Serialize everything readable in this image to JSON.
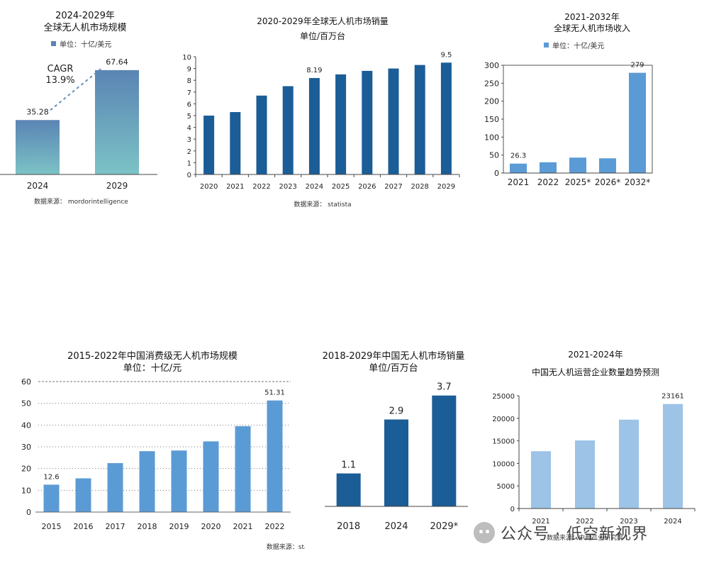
{
  "chart_data": [
    {
      "type": "bar",
      "title": "2024-2029年\n全球无人机市场规模",
      "legend": "单位：十亿/美元",
      "categories": [
        "2024",
        "2029"
      ],
      "values": [
        35.28,
        67.64
      ],
      "value_labels": [
        "35.28",
        "67.64"
      ],
      "annotation": "CAGR\n13.9%",
      "source": "数据来源：  mordorintelligence",
      "gradient": true,
      "colors": {
        "top": "#5a84b4",
        "bottom": "#7cc3c6"
      },
      "ylim": [
        0,
        80
      ]
    },
    {
      "type": "bar",
      "title": "2020-2029年全球无人机市场销量",
      "subtitle": "单位/百万台",
      "categories": [
        "2020",
        "2021",
        "2022",
        "2023",
        "2024",
        "2025",
        "2026",
        "2027",
        "2028",
        "2029"
      ],
      "values": [
        5.0,
        5.3,
        6.7,
        7.5,
        8.19,
        8.5,
        8.8,
        9.0,
        9.3,
        9.5
      ],
      "value_labels": {
        "4": "8.19",
        "9": "9.5"
      },
      "yticks": [
        "0",
        "1",
        "2",
        "3",
        "4",
        "5",
        "6",
        "7",
        "8",
        "9",
        "10"
      ],
      "ylim": [
        0,
        10
      ],
      "source": "数据来源：  statista",
      "colors": {
        "bar": "#1b5d96"
      }
    },
    {
      "type": "bar",
      "title": "2021-2032年\n全球无人机市场收入",
      "legend": "单位：十亿/美元",
      "categories": [
        "2021",
        "2022",
        "2025*",
        "2026*",
        "2032*"
      ],
      "values": [
        26.3,
        30,
        43,
        41,
        279
      ],
      "value_labels": {
        "0": "26.3",
        "4": "279"
      },
      "yticks": [
        "0",
        "50",
        "100",
        "150",
        "200",
        "250",
        "300"
      ],
      "ylim": [
        0,
        300
      ],
      "colors": {
        "bar": "#5b9bd5"
      }
    },
    {
      "type": "bar",
      "title": "2015-2022年中国消费级无人机市场规模",
      "subtitle": "单位：十亿/元",
      "categories": [
        "2015",
        "2016",
        "2017",
        "2018",
        "2019",
        "2020",
        "2021",
        "2022"
      ],
      "values": [
        12.6,
        15.5,
        22.5,
        28,
        28.3,
        32.5,
        39.5,
        51.31
      ],
      "value_labels": {
        "0": "12.6",
        "7": "51.31"
      },
      "yticks": [
        "0",
        "10",
        "20",
        "30",
        "40",
        "50",
        "60"
      ],
      "ylim": [
        0,
        60
      ],
      "source": "数据来源：statista",
      "colors": {
        "bar": "#5b9bd5"
      }
    },
    {
      "type": "bar",
      "title": "2018-2029年中国无人机市场销量",
      "subtitle": "单位/百万台",
      "categories": [
        "2018",
        "2024",
        "2029*"
      ],
      "values": [
        1.1,
        2.9,
        3.7
      ],
      "value_labels": [
        "1.1",
        "2.9",
        "3.7"
      ],
      "ylim": [
        0,
        4
      ],
      "colors": {
        "bar": "#1b5d96"
      }
    },
    {
      "type": "bar",
      "title": "2021-2024年\n中国无人机运营企业数量趋势预测",
      "categories": [
        "2021",
        "2022",
        "2023",
        "2024"
      ],
      "values": [
        12700,
        15100,
        19700,
        23161
      ],
      "value_labels": {
        "3": "23161"
      },
      "yticks": [
        "0",
        "5000",
        "10000",
        "15000",
        "20000",
        "25000"
      ],
      "ylim": [
        0,
        25000
      ],
      "source": "数据来源：中商产业研究院",
      "colors": {
        "bar": "#9dc3e6"
      }
    }
  ],
  "watermark": {
    "text": "公众号 · 低空新视界"
  }
}
